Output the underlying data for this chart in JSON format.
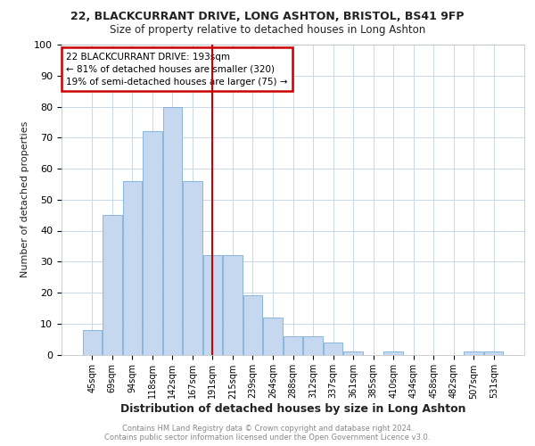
{
  "title1": "22, BLACKCURRANT DRIVE, LONG ASHTON, BRISTOL, BS41 9FP",
  "title2": "Size of property relative to detached houses in Long Ashton",
  "xlabel": "Distribution of detached houses by size in Long Ashton",
  "ylabel": "Number of detached properties",
  "categories": [
    "45sqm",
    "69sqm",
    "94sqm",
    "118sqm",
    "142sqm",
    "167sqm",
    "191sqm",
    "215sqm",
    "239sqm",
    "264sqm",
    "288sqm",
    "312sqm",
    "337sqm",
    "361sqm",
    "385sqm",
    "410sqm",
    "434sqm",
    "458sqm",
    "482sqm",
    "507sqm",
    "531sqm"
  ],
  "values": [
    8,
    45,
    56,
    72,
    80,
    56,
    32,
    32,
    19,
    12,
    6,
    6,
    4,
    1,
    0,
    1,
    0,
    0,
    0,
    1,
    1
  ],
  "bar_color": "#c5d8ef",
  "bar_edge_color": "#7aaed6",
  "redline_color": "#cc0000",
  "annotation_title": "22 BLACKCURRANT DRIVE: 193sqm",
  "annotation_line1": "← 81% of detached houses are smaller (320)",
  "annotation_line2": "19% of semi-detached houses are larger (75) →",
  "annotation_box_color": "#ffffff",
  "annotation_box_edge": "#cc0000",
  "grid_color": "#c8d8ea",
  "footer1": "Contains HM Land Registry data © Crown copyright and database right 2024.",
  "footer2": "Contains public sector information licensed under the Open Government Licence v3.0.",
  "ylim": [
    0,
    100
  ],
  "yticks": [
    0,
    10,
    20,
    30,
    40,
    50,
    60,
    70,
    80,
    90,
    100
  ]
}
